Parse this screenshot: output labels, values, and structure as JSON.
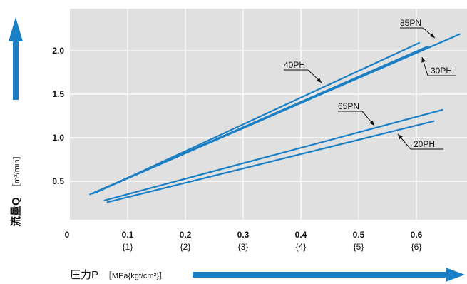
{
  "chart_data": {
    "type": "line",
    "x": [
      0.04,
      0.68
    ],
    "xlim": [
      0,
      0.7
    ],
    "ylim": [
      0,
      2.45
    ],
    "xticks": [
      {
        "value": 0,
        "label": "0",
        "sub": ""
      },
      {
        "value": 0.1,
        "label": "0.1",
        "sub": "{1}"
      },
      {
        "value": 0.2,
        "label": "0.2",
        "sub": "{2}"
      },
      {
        "value": 0.3,
        "label": "0.3",
        "sub": "{3}"
      },
      {
        "value": 0.4,
        "label": "0.4",
        "sub": "{4}"
      },
      {
        "value": 0.5,
        "label": "0.5",
        "sub": "{5}"
      },
      {
        "value": 0.6,
        "label": "0.6",
        "sub": "{6}"
      }
    ],
    "yticks": [
      {
        "value": 0.5,
        "label": "0.5"
      },
      {
        "value": 1.0,
        "label": "1.0"
      },
      {
        "value": 1.5,
        "label": "1.5"
      },
      {
        "value": 2.0,
        "label": "2.0"
      }
    ],
    "grid": true,
    "xlabel": "圧力P［MPa{kgf/cm²}］",
    "ylabel": "流量Q［m³/min］",
    "series": [
      {
        "name": "85PN",
        "points": [
          [
            0.04,
            0.36
          ],
          [
            0.675,
            2.19
          ]
        ]
      },
      {
        "name": "30PH",
        "points": [
          [
            0.035,
            0.35
          ],
          [
            0.62,
            2.05
          ]
        ]
      },
      {
        "name": "40PH",
        "points": [
          [
            0.045,
            0.37
          ],
          [
            0.605,
            2.09
          ]
        ]
      },
      {
        "name": "65PN",
        "points": [
          [
            0.06,
            0.28
          ],
          [
            0.645,
            1.32
          ]
        ]
      },
      {
        "name": "20PH",
        "points": [
          [
            0.065,
            0.26
          ],
          [
            0.63,
            1.19
          ]
        ]
      }
    ]
  },
  "colors": {
    "line": "#1a7fc4",
    "plot_bg": "#e0e0e0",
    "grid": "#ffffff",
    "arrow": "#1a7fc4"
  },
  "axis_titles": {
    "x_main": "圧力P",
    "x_unit": "［MPa{kgf/cm²}］",
    "y_main": "流量Q",
    "y_unit": "［m³/min］"
  }
}
